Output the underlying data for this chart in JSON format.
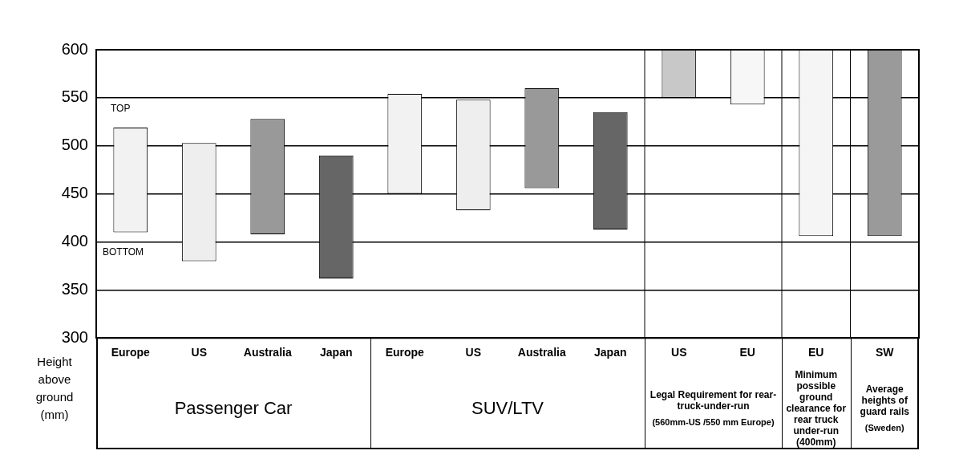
{
  "chart_data": {
    "type": "bar",
    "ylabel": "Height above ground (mm)",
    "categories": [
      "Europe",
      "US",
      "Australia",
      "Japan",
      "Europe",
      "US",
      "Australia",
      "Japan",
      "US",
      "EU",
      "EU",
      "SW"
    ],
    "base": [
      410,
      380,
      408,
      362,
      450,
      433,
      456,
      413,
      550,
      543,
      406,
      406
    ],
    "values": [
      109,
      123,
      120,
      128,
      104,
      115,
      104,
      122,
      50,
      57,
      194,
      194
    ],
    "colors": [
      "#f2f2f2",
      "#eeeeee",
      "#999999",
      "#666666",
      "#f2f2f2",
      "#eeeeee",
      "#999999",
      "#666666",
      "#c8c8c8",
      "#f7f7f7",
      "#f5f5f5",
      "#9a9a9a"
    ],
    "ylim": [
      300,
      600
    ],
    "yticks": [
      300,
      350,
      400,
      450,
      500,
      550,
      600
    ],
    "grid": "y",
    "annotations": [
      "TOP",
      "BOTTOM",
      "Passenger Car",
      "SUV/LTV",
      "Legal Requirement for rear-truck-under-run",
      "(560mm-US /550 mm Europe)",
      "Minimum possible ground clearance for rear truck under-run (400mm)",
      "Average heights of guard rails",
      "(Sweden)"
    ]
  }
}
